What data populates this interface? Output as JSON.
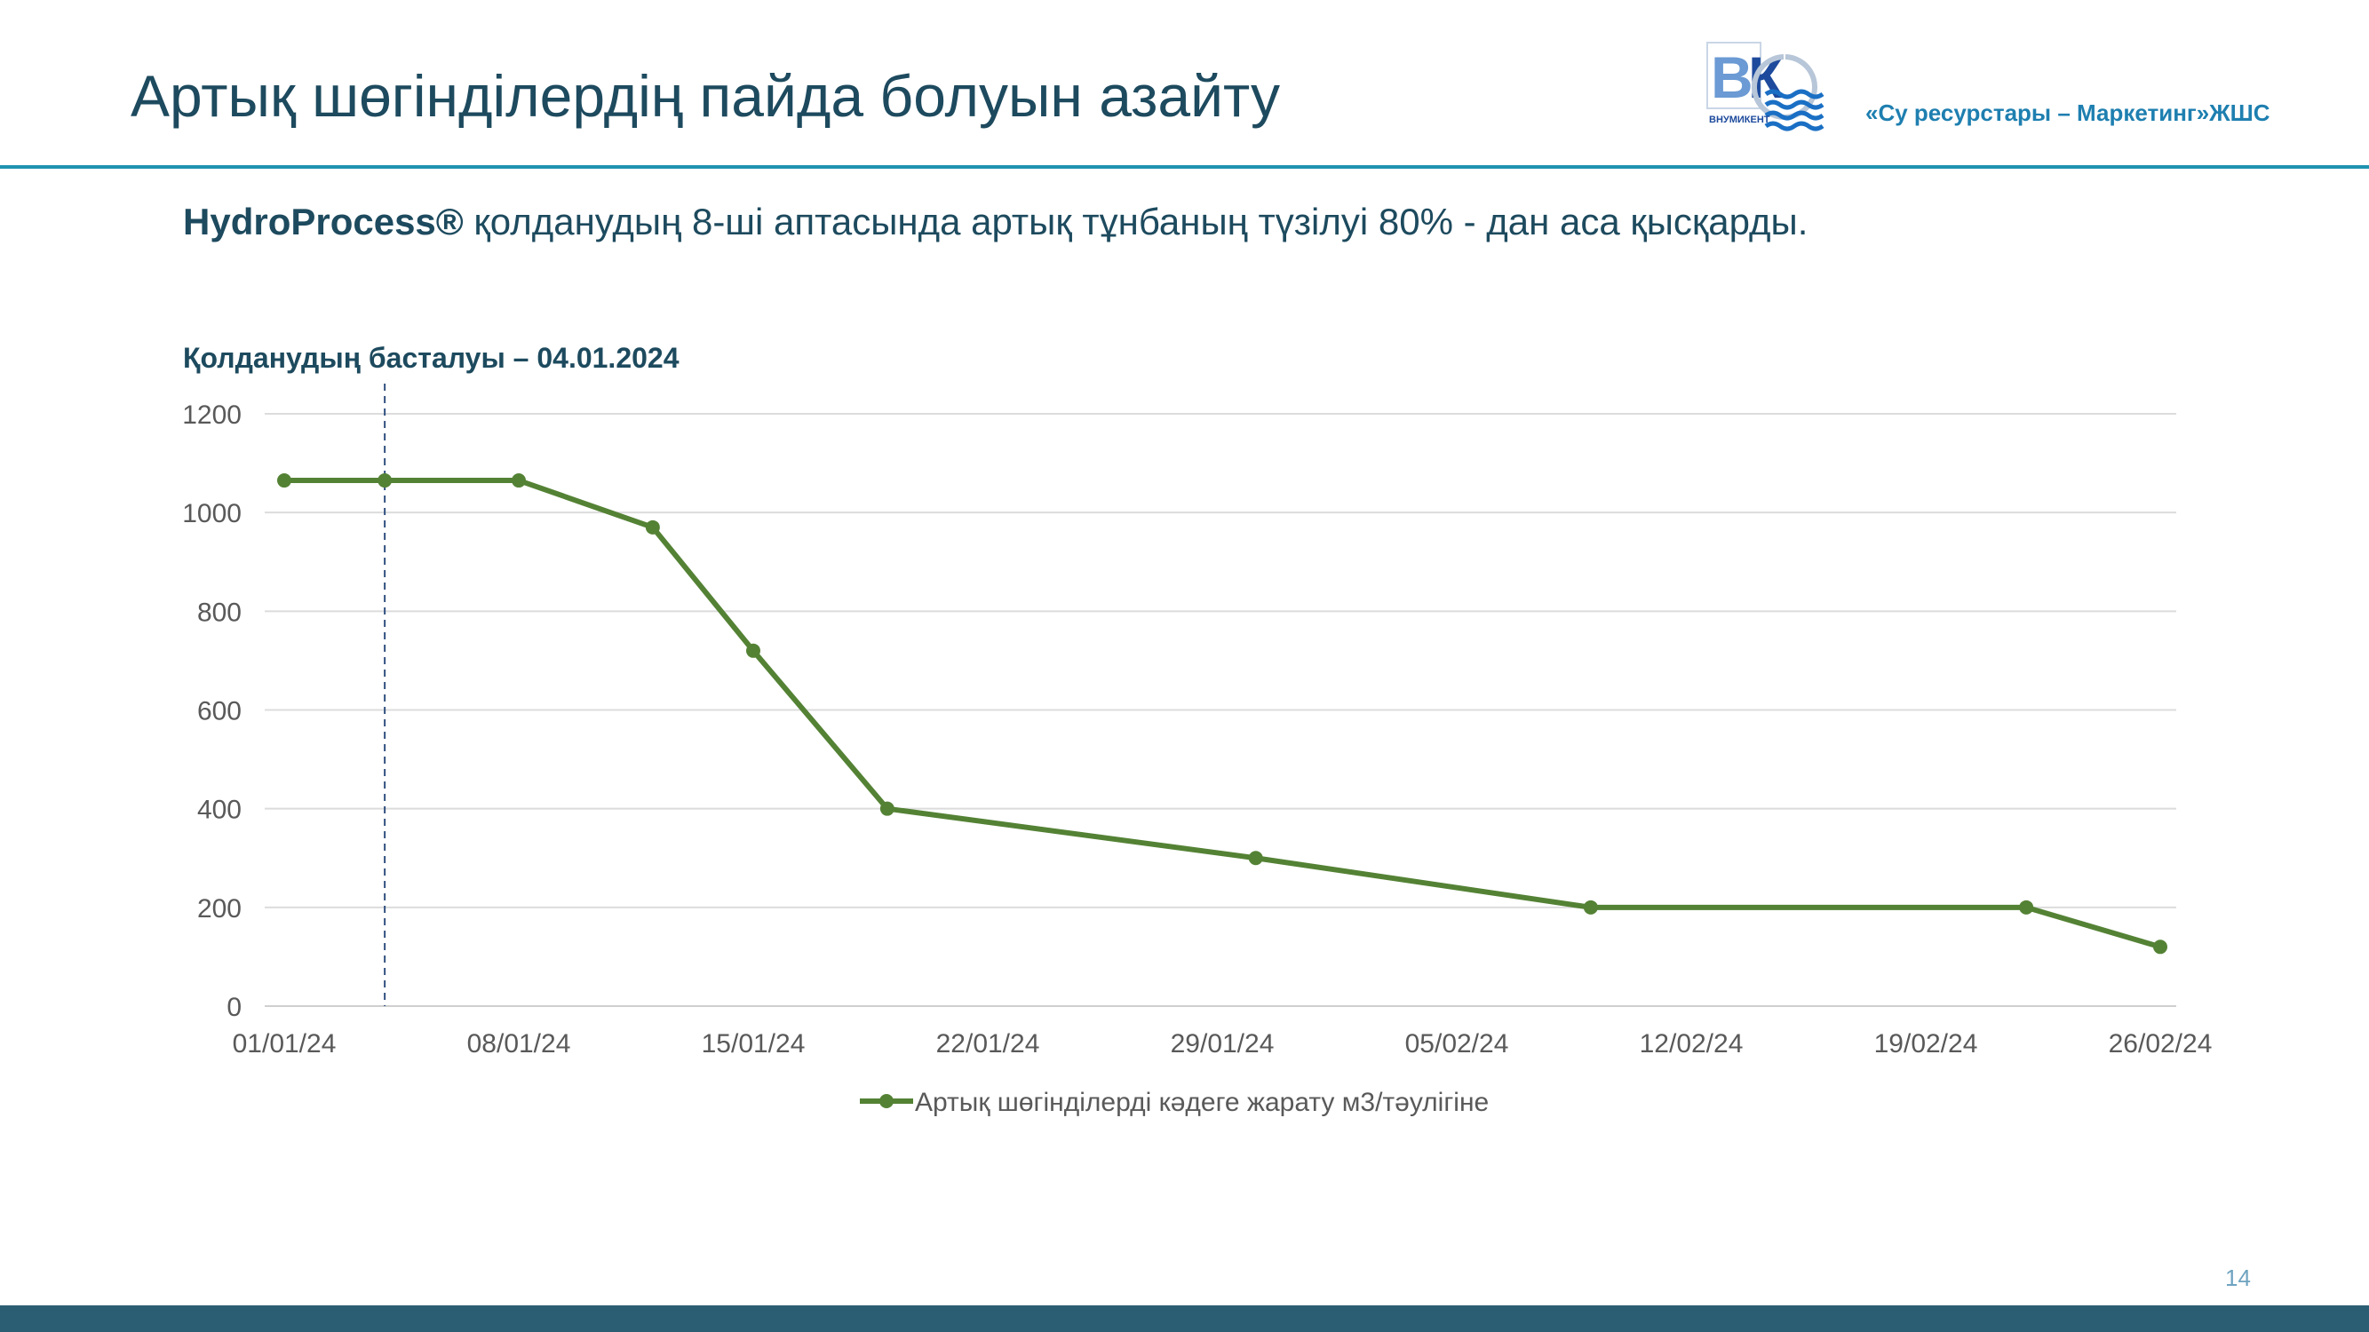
{
  "slide": {
    "title": "Артық шөгінділердің пайда болуын азайту",
    "company": "«Су ресурстары – Маркетинг»ЖШС",
    "logo_text": "ВНУМИКЕНТ",
    "subtitle_bold": "HydroProcess®",
    "subtitle_rest": " қолданудың 8-ші аптасында артық тұнбаның түзілуі 80% - дан аса қысқарды.",
    "start_label": "Қолданудың басталуы – 04.01.2024",
    "page_number": "14"
  },
  "colors": {
    "title": "#1d4a5e",
    "accent_line": "#1f93b0",
    "series": "#548235",
    "marker_line": "#2f4f7f",
    "footer": "#2b5e72"
  },
  "chart_data": {
    "type": "line",
    "x_labels": [
      "01/01/24",
      "08/01/24",
      "15/01/24",
      "22/01/24",
      "29/01/24",
      "05/02/24",
      "12/02/24",
      "19/02/24",
      "26/02/24"
    ],
    "y_ticks": [
      0,
      200,
      400,
      600,
      800,
      1000,
      1200
    ],
    "ylim": [
      0,
      1200
    ],
    "xlim": [
      "2024-01-01",
      "2024-02-26"
    ],
    "vertical_marker_date": "2024-01-04",
    "series": [
      {
        "name": "Артық шөгінділерді кәдеге жарату м3/тәулігіне",
        "points": [
          {
            "x": "2024-01-01",
            "y": 1065
          },
          {
            "x": "2024-01-04",
            "y": 1065
          },
          {
            "x": "2024-01-08",
            "y": 1065
          },
          {
            "x": "2024-01-12",
            "y": 970
          },
          {
            "x": "2024-01-15",
            "y": 720
          },
          {
            "x": "2024-01-19",
            "y": 400
          },
          {
            "x": "2024-01-30",
            "y": 300
          },
          {
            "x": "2024-02-09",
            "y": 200
          },
          {
            "x": "2024-02-22",
            "y": 200
          },
          {
            "x": "2024-02-26",
            "y": 120
          }
        ]
      }
    ],
    "grid": true,
    "legend": "bottom"
  }
}
